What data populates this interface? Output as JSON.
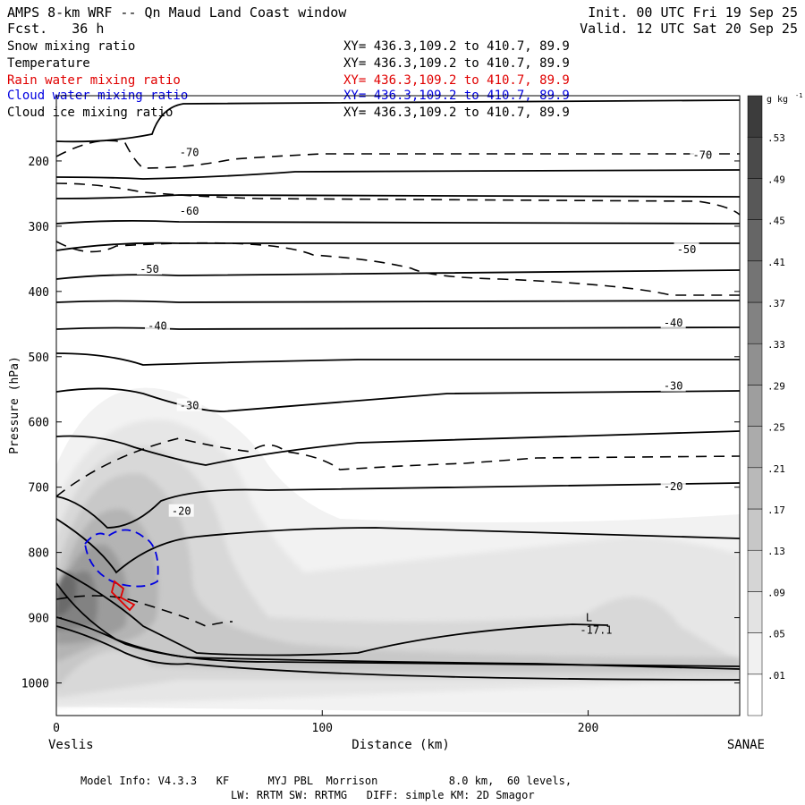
{
  "header": {
    "title": "AMPS 8-km WRF -- Qn Maud Land Coast window",
    "fcst": "Fcst.   36 h",
    "init": "Init. 00 UTC Fri 19 Sep 25",
    "valid": "Valid. 12 UTC Sat 20 Sep 25"
  },
  "fields": [
    {
      "name": "Snow mixing ratio",
      "xy": "XY= 436.3,109.2 to 410.7, 89.9",
      "color": "#000000"
    },
    {
      "name": "Temperature",
      "xy": "XY= 436.3,109.2 to 410.7, 89.9",
      "color": "#000000"
    },
    {
      "name": "Rain water mixing ratio",
      "xy": "XY= 436.3,109.2 to 410.7, 89.9",
      "color": "#e00000"
    },
    {
      "name": "Cloud water mixing ratio",
      "xy": "XY= 436.3,109.2 to 410.7, 89.9",
      "color": "#0000e0"
    },
    {
      "name": "Cloud ice mixing ratio",
      "xy": "XY= 436.3,109.2 to 410.7, 89.9",
      "color": "#000000"
    }
  ],
  "chart_data": {
    "type": "heatmap",
    "title": "AMPS 8-km WRF -- Qn Maud Land Coast window",
    "xlabel": "Distance (km)",
    "ylabel": "Pressure (hPa)",
    "xlim": [
      0,
      257
    ],
    "ylim": [
      1050,
      100
    ],
    "x_ticks": [
      0,
      100,
      200
    ],
    "y_ticks": [
      200,
      300,
      400,
      500,
      600,
      700,
      800,
      900,
      1000
    ],
    "x_endpoints": {
      "left": "Veslis",
      "right": "SANAE"
    },
    "colorbar": {
      "unit": "g kg",
      "unit_exp": "-1",
      "levels": [
        ".01",
        ".05",
        ".09",
        ".13",
        ".17",
        ".21",
        ".25",
        ".29",
        ".33",
        ".37",
        ".41",
        ".45",
        ".49",
        ".53"
      ]
    },
    "temperature_labels": [
      {
        "text": "-70",
        "x": 50,
        "p": 187
      },
      {
        "text": "-70",
        "x": 243,
        "p": 191
      },
      {
        "text": "-60",
        "x": 50,
        "p": 277
      },
      {
        "text": "-50",
        "x": 35,
        "p": 366
      },
      {
        "text": "-50",
        "x": 237,
        "p": 336
      },
      {
        "text": "-40",
        "x": 38,
        "p": 453
      },
      {
        "text": "-40",
        "x": 232,
        "p": 448
      },
      {
        "text": "-30",
        "x": 50,
        "p": 575
      },
      {
        "text": "-30",
        "x": 232,
        "p": 545
      },
      {
        "text": "-20",
        "x": 47,
        "p": 737
      },
      {
        "text": "-20",
        "x": 232,
        "p": 699
      }
    ],
    "minimum_label": {
      "marker": "L",
      "value": "-17.1",
      "x": 203,
      "p": 908
    }
  },
  "footer": {
    "line1": "Model Info: V4.3.3   KF      MYJ PBL  Morrison           8.0 km,  60 levels,",
    "line2": "LW: RRTM SW: RRTMG   DIFF: simple KM: 2D Smagor"
  }
}
